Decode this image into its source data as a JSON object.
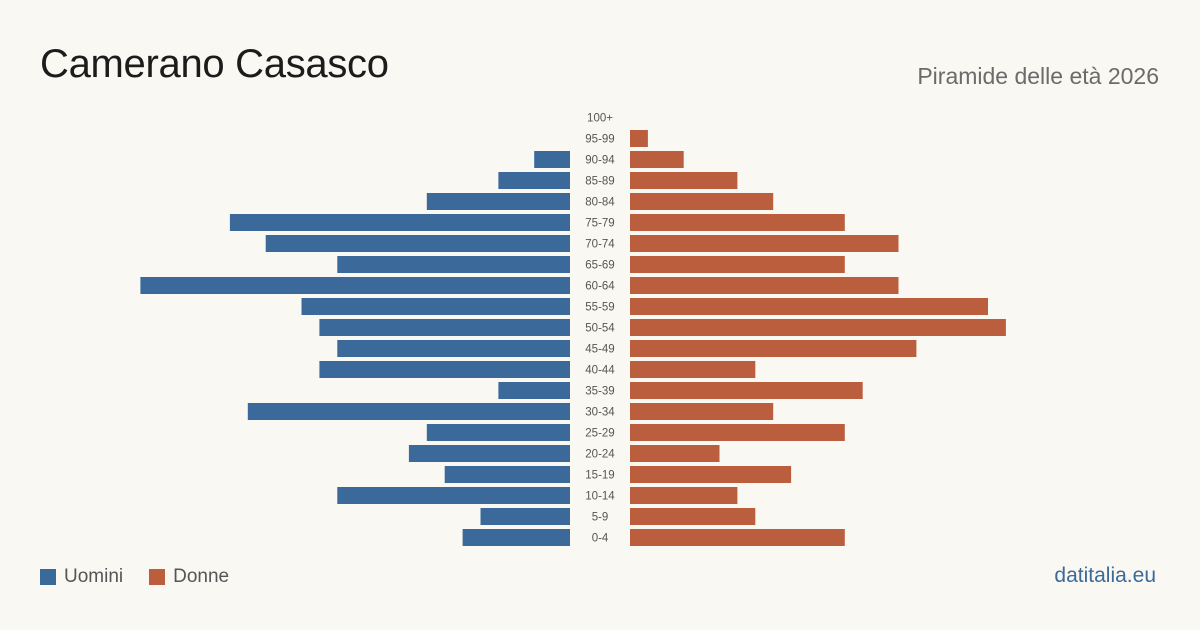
{
  "header": {
    "title": "Camerano Casasco",
    "subtitle": "Piramide delle età 2026"
  },
  "legend": {
    "male_label": "Uomini",
    "female_label": "Donne"
  },
  "footer": {
    "site": "datitalia.eu"
  },
  "colors": {
    "male": "#3b6a9a",
    "female": "#bb5e3e",
    "background": "#faf8f3"
  },
  "chart_data": {
    "type": "bar",
    "orientation": "horizontal-pyramid",
    "categories": [
      "100+",
      "95-99",
      "90-94",
      "85-89",
      "80-84",
      "75-79",
      "70-74",
      "65-69",
      "60-64",
      "55-59",
      "50-54",
      "45-49",
      "40-44",
      "35-39",
      "30-34",
      "25-29",
      "20-24",
      "15-19",
      "10-14",
      "5-9",
      "0-4"
    ],
    "series": [
      {
        "name": "Uomini",
        "values": [
          0,
          0,
          2,
          4,
          8,
          19,
          17,
          13,
          24,
          15,
          14,
          13,
          14,
          4,
          18,
          8,
          9,
          7,
          13,
          5,
          6
        ]
      },
      {
        "name": "Donne",
        "values": [
          0,
          1,
          3,
          6,
          8,
          12,
          15,
          12,
          15,
          20,
          21,
          16,
          7,
          13,
          8,
          12,
          5,
          9,
          6,
          7,
          12
        ]
      }
    ]
  }
}
